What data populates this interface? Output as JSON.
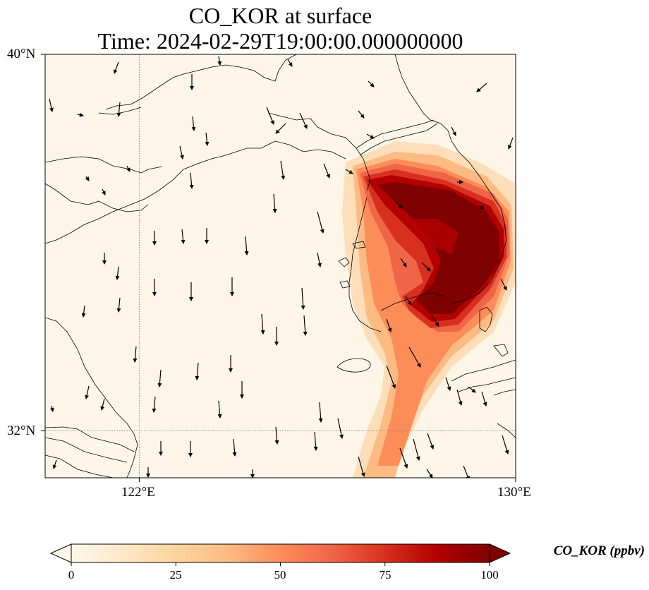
{
  "title": {
    "line1": "CO_KOR at surface",
    "line2": "Time: 2024-02-29T19:00:00.000000000"
  },
  "map": {
    "extent": {
      "lon": [
        120.0,
        130.0
      ],
      "lat": [
        31.0,
        40.0
      ]
    },
    "gridlines": {
      "lon": [
        122
      ],
      "lat": [
        32
      ],
      "style": "dotted",
      "color": "#888888"
    },
    "lon_ticks": [
      "122°E",
      "130°E"
    ],
    "lat_ticks": [
      "32°N",
      "40°N"
    ],
    "variable": "CO_KOR",
    "units": "ppbv"
  },
  "colorbar": {
    "label": "CO_KOR (ppbv)",
    "ticks": [
      "0",
      "25",
      "50",
      "75",
      "100"
    ],
    "range": [
      0,
      100
    ],
    "extend": "both",
    "colormap": "OrRd",
    "colors": [
      "#fff7ec",
      "#fee8c8",
      "#fdd49e",
      "#fdbb84",
      "#fc8d59",
      "#ef6548",
      "#d7301f",
      "#b30000",
      "#7f0000"
    ]
  }
}
